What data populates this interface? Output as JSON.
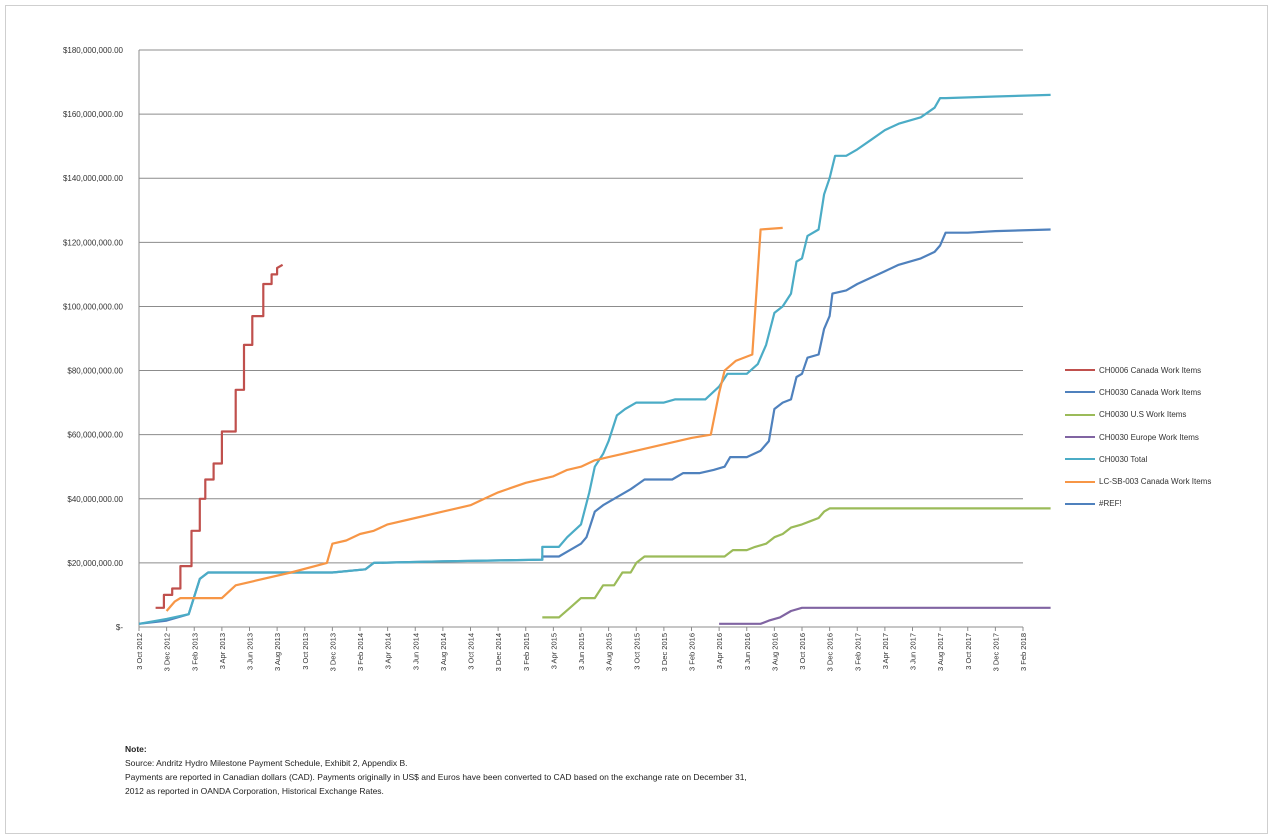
{
  "chart_data": {
    "type": "line",
    "title": "",
    "xlabel": "",
    "ylabel": "",
    "ylim": [
      0,
      180000000
    ],
    "y_ticks": [
      "$-",
      "$20,000,000.00",
      "$40,000,000.00",
      "$60,000,000.00",
      "$80,000,000.00",
      "$100,000,000.00",
      "$120,000,000.00",
      "$140,000,000.00",
      "$160,000,000.00",
      "$180,000,000.00"
    ],
    "x_ticks": [
      "3 Oct 2012",
      "3 Dec 2012",
      "3 Feb 2013",
      "3 Apr 2013",
      "3 Jun 2013",
      "3 Aug 2013",
      "3 Oct 2013",
      "3 Dec 2013",
      "3 Feb 2014",
      "3 Apr 2014",
      "3 Jun 2014",
      "3 Aug 2014",
      "3 Oct 2014",
      "3 Dec 2014",
      "3 Feb 2015",
      "3 Apr 2015",
      "3 Jun 2015",
      "3 Aug 2015",
      "3 Oct 2015",
      "3 Dec 2015",
      "3 Feb 2016",
      "3 Apr 2016",
      "3 Jun 2016",
      "3 Aug 2016",
      "3 Oct 2016",
      "3 Dec 2016",
      "3 Feb 2017",
      "3 Apr 2017",
      "3 Jun 2017",
      "3 Aug 2017",
      "3 Oct 2017",
      "3 Dec 2017",
      "3 Feb 2018"
    ],
    "grid": true,
    "legend_position": "right",
    "series": [
      {
        "name": "CH0006 Canada Work Items",
        "color": "#c0504d",
        "step": true,
        "points": [
          [
            0.6,
            6000000
          ],
          [
            0.9,
            6000000
          ],
          [
            0.9,
            10000000
          ],
          [
            1.2,
            10000000
          ],
          [
            1.2,
            12000000
          ],
          [
            1.5,
            12000000
          ],
          [
            1.5,
            19000000
          ],
          [
            1.9,
            19000000
          ],
          [
            1.9,
            30000000
          ],
          [
            2.2,
            30000000
          ],
          [
            2.2,
            40000000
          ],
          [
            2.4,
            40000000
          ],
          [
            2.4,
            46000000
          ],
          [
            2.7,
            46000000
          ],
          [
            2.7,
            51000000
          ],
          [
            3.0,
            51000000
          ],
          [
            3.0,
            61000000
          ],
          [
            3.3,
            61000000
          ],
          [
            3.3,
            61000000
          ],
          [
            3.5,
            61000000
          ],
          [
            3.5,
            74000000
          ],
          [
            3.8,
            74000000
          ],
          [
            3.8,
            88000000
          ],
          [
            4.1,
            88000000
          ],
          [
            4.1,
            97000000
          ],
          [
            4.5,
            97000000
          ],
          [
            4.5,
            107000000
          ],
          [
            4.8,
            107000000
          ],
          [
            4.8,
            110000000
          ],
          [
            5.0,
            110000000
          ],
          [
            5.0,
            112000000
          ],
          [
            5.2,
            113000000
          ]
        ]
      },
      {
        "name": "CH0030 Canada Work Items",
        "color": "#4f81bd",
        "step": true,
        "points": [
          [
            0,
            1000000
          ],
          [
            1.0,
            2000000
          ],
          [
            1.8,
            4000000
          ],
          [
            2.2,
            15000000
          ],
          [
            2.5,
            17000000
          ],
          [
            4.5,
            17000000
          ],
          [
            7.0,
            17000000
          ],
          [
            8.2,
            18000000
          ],
          [
            8.5,
            20000000
          ],
          [
            11.0,
            20500000
          ],
          [
            14.6,
            21000000
          ],
          [
            14.6,
            22000000
          ],
          [
            15.2,
            22000000
          ],
          [
            15.6,
            24000000
          ],
          [
            16.0,
            26000000
          ],
          [
            16.2,
            28000000
          ],
          [
            16.5,
            36000000
          ],
          [
            16.8,
            38000000
          ],
          [
            17.2,
            40000000
          ],
          [
            17.8,
            43000000
          ],
          [
            18.3,
            46000000
          ],
          [
            19.3,
            46000000
          ],
          [
            19.7,
            48000000
          ],
          [
            20.3,
            48000000
          ],
          [
            20.8,
            49000000
          ],
          [
            21.2,
            50000000
          ],
          [
            21.4,
            53000000
          ],
          [
            22.0,
            53000000
          ],
          [
            22.5,
            55000000
          ],
          [
            22.8,
            58000000
          ],
          [
            23.0,
            68000000
          ],
          [
            23.3,
            70000000
          ],
          [
            23.6,
            71000000
          ],
          [
            23.8,
            78000000
          ],
          [
            24.0,
            79000000
          ],
          [
            24.2,
            84000000
          ],
          [
            24.6,
            85000000
          ],
          [
            24.8,
            93000000
          ],
          [
            25.0,
            97000000
          ],
          [
            25.1,
            104000000
          ],
          [
            25.6,
            105000000
          ],
          [
            26.0,
            107000000
          ],
          [
            26.5,
            109000000
          ],
          [
            27.0,
            111000000
          ],
          [
            27.5,
            113000000
          ],
          [
            28.3,
            115000000
          ],
          [
            28.8,
            117000000
          ],
          [
            29.0,
            119000000
          ],
          [
            29.2,
            123000000
          ],
          [
            30.0,
            123000000
          ],
          [
            31.0,
            123500000
          ],
          [
            33.0,
            124000000
          ]
        ]
      },
      {
        "name": "CH0030 U.S Work Items",
        "color": "#9bbb59",
        "step": true,
        "points": [
          [
            14.6,
            3000000
          ],
          [
            15.2,
            3000000
          ],
          [
            15.6,
            6000000
          ],
          [
            16.0,
            9000000
          ],
          [
            16.5,
            9000000
          ],
          [
            16.8,
            13000000
          ],
          [
            17.2,
            13000000
          ],
          [
            17.5,
            17000000
          ],
          [
            17.8,
            17000000
          ],
          [
            18.0,
            20000000
          ],
          [
            18.3,
            22000000
          ],
          [
            19.3,
            22000000
          ],
          [
            21.2,
            22000000
          ],
          [
            21.5,
            24000000
          ],
          [
            22.0,
            24000000
          ],
          [
            22.3,
            25000000
          ],
          [
            22.7,
            26000000
          ],
          [
            23.0,
            28000000
          ],
          [
            23.3,
            29000000
          ],
          [
            23.6,
            31000000
          ],
          [
            24.0,
            32000000
          ],
          [
            24.3,
            33000000
          ],
          [
            24.6,
            34000000
          ],
          [
            24.8,
            36000000
          ],
          [
            25.0,
            37000000
          ],
          [
            26.0,
            37000000
          ],
          [
            30.0,
            37000000
          ],
          [
            33.0,
            37000000
          ]
        ]
      },
      {
        "name": "CH0030 Europe Work Items",
        "color": "#8064a2",
        "step": true,
        "points": [
          [
            21.0,
            1000000
          ],
          [
            22.5,
            1000000
          ],
          [
            22.8,
            2000000
          ],
          [
            23.2,
            3000000
          ],
          [
            23.6,
            5000000
          ],
          [
            24.0,
            6000000
          ],
          [
            25.0,
            6000000
          ],
          [
            33.0,
            6000000
          ]
        ]
      },
      {
        "name": "CH0030 Total",
        "color": "#4bacc6",
        "step": true,
        "points": [
          [
            0,
            1000000
          ],
          [
            1.0,
            2500000
          ],
          [
            1.8,
            4000000
          ],
          [
            2.2,
            15000000
          ],
          [
            2.5,
            17000000
          ],
          [
            7.0,
            17000000
          ],
          [
            8.2,
            18000000
          ],
          [
            8.5,
            20000000
          ],
          [
            11.0,
            20500000
          ],
          [
            14.6,
            21000000
          ],
          [
            14.6,
            25000000
          ],
          [
            15.2,
            25000000
          ],
          [
            15.5,
            28000000
          ],
          [
            16.0,
            32000000
          ],
          [
            16.3,
            42000000
          ],
          [
            16.5,
            50000000
          ],
          [
            16.8,
            54000000
          ],
          [
            17.0,
            58000000
          ],
          [
            17.3,
            66000000
          ],
          [
            17.6,
            68000000
          ],
          [
            18.0,
            70000000
          ],
          [
            19.0,
            70000000
          ],
          [
            19.4,
            71000000
          ],
          [
            20.5,
            71000000
          ],
          [
            21.0,
            75000000
          ],
          [
            21.3,
            79000000
          ],
          [
            22.0,
            79000000
          ],
          [
            22.4,
            82000000
          ],
          [
            22.7,
            88000000
          ],
          [
            23.0,
            98000000
          ],
          [
            23.3,
            100000000
          ],
          [
            23.6,
            104000000
          ],
          [
            23.8,
            114000000
          ],
          [
            24.0,
            115000000
          ],
          [
            24.2,
            122000000
          ],
          [
            24.6,
            124000000
          ],
          [
            24.8,
            135000000
          ],
          [
            25.0,
            140000000
          ],
          [
            25.2,
            147000000
          ],
          [
            25.6,
            147000000
          ],
          [
            26.0,
            149000000
          ],
          [
            26.5,
            152000000
          ],
          [
            27.0,
            155000000
          ],
          [
            27.5,
            157000000
          ],
          [
            28.3,
            159000000
          ],
          [
            28.8,
            162000000
          ],
          [
            29.0,
            165000000
          ],
          [
            29.2,
            165000000
          ],
          [
            31.0,
            165500000
          ],
          [
            33.0,
            166000000
          ]
        ]
      },
      {
        "name": "LC-SB-003 Canada Work Items",
        "color": "#f79646",
        "step": false,
        "points": [
          [
            1.0,
            5000000
          ],
          [
            1.3,
            8000000
          ],
          [
            1.5,
            9000000
          ],
          [
            3.0,
            9000000
          ],
          [
            3.5,
            13000000
          ],
          [
            5.5,
            17000000
          ],
          [
            6.8,
            20000000
          ],
          [
            7.0,
            26000000
          ],
          [
            7.5,
            27000000
          ],
          [
            8.0,
            29000000
          ],
          [
            8.5,
            30000000
          ],
          [
            9.0,
            32000000
          ],
          [
            10.0,
            34000000
          ],
          [
            11.0,
            36000000
          ],
          [
            12.0,
            38000000
          ],
          [
            12.5,
            40000000
          ],
          [
            13.0,
            42000000
          ],
          [
            14.0,
            45000000
          ],
          [
            15.0,
            47000000
          ],
          [
            15.5,
            49000000
          ],
          [
            16.0,
            50000000
          ],
          [
            16.5,
            52000000
          ],
          [
            17.0,
            53000000
          ],
          [
            17.5,
            54000000
          ],
          [
            18.0,
            55000000
          ],
          [
            19.0,
            57000000
          ],
          [
            20.0,
            59000000
          ],
          [
            20.7,
            60000000
          ],
          [
            21.0,
            73000000
          ],
          [
            21.2,
            80000000
          ],
          [
            21.6,
            83000000
          ],
          [
            22.2,
            85000000
          ],
          [
            22.5,
            124000000
          ],
          [
            23.3,
            124500000
          ]
        ]
      },
      {
        "name": "#REF!",
        "color": "#4f81bd",
        "step": false,
        "points": []
      }
    ],
    "note_title": "Note:",
    "note_lines": [
      "Source: Andritz Hydro Milestone Payment Schedule, Exhibit 2, Appendix B.",
      "Payments are reported in Canadian dollars (CAD). Payments originally in US$ and Euros have been converted to CAD based on the exchange rate on December 31,",
      "2012 as reported in OANDA Corporation, Historical Exchange Rates."
    ]
  }
}
